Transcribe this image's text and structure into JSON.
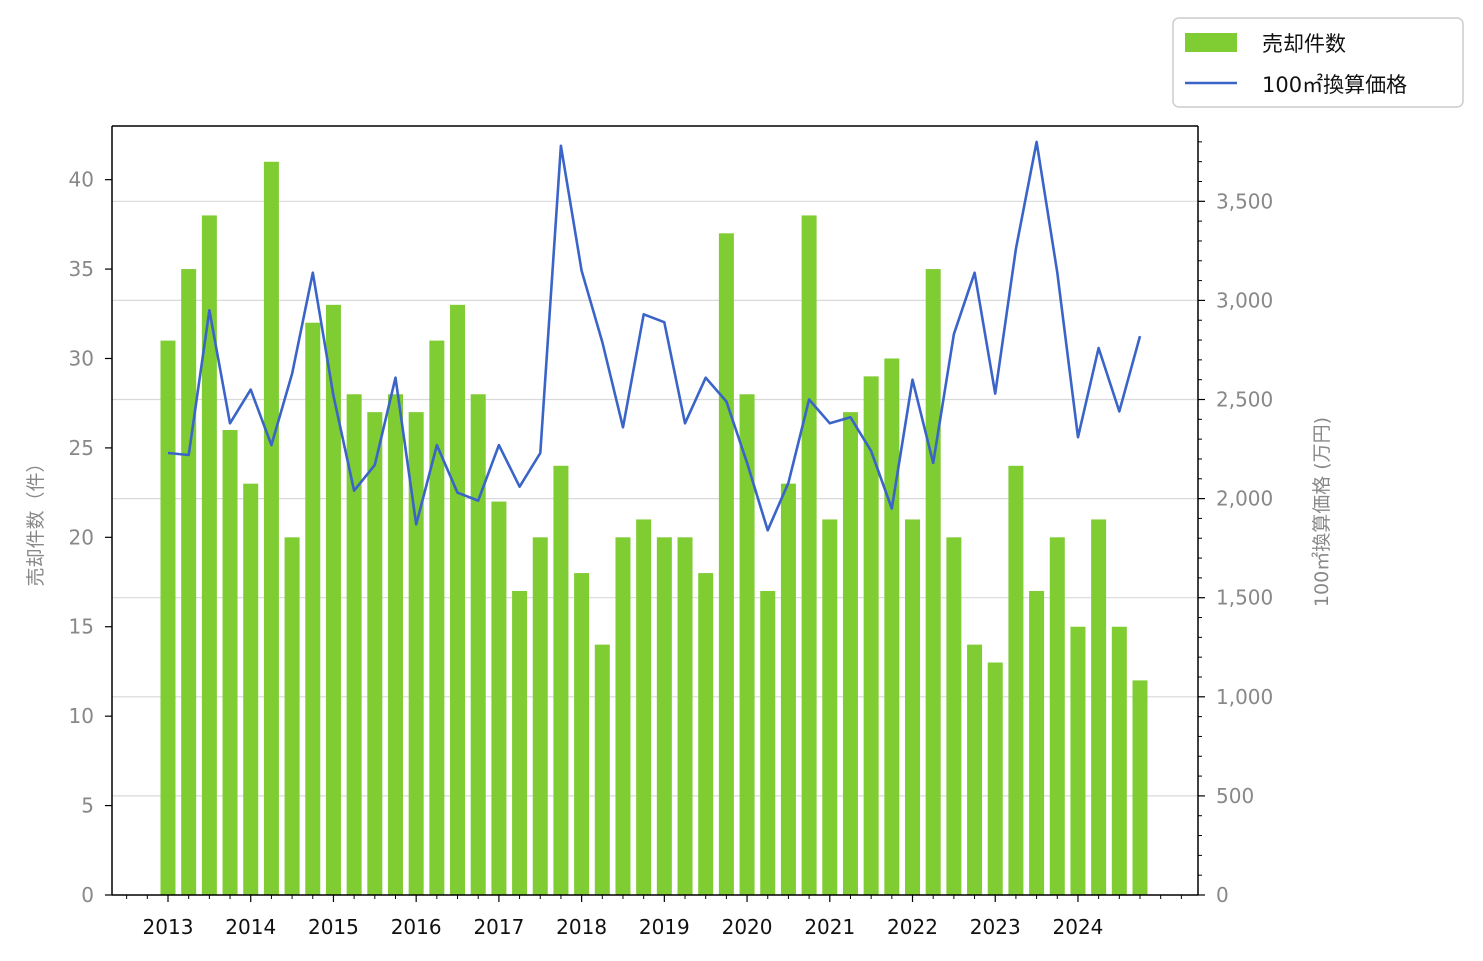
{
  "chart_data": {
    "type": "bar+line",
    "title": "",
    "x_tick_labels": [
      "2013",
      "2014",
      "2015",
      "2016",
      "2017",
      "2018",
      "2019",
      "2020",
      "2021",
      "2022",
      "2023",
      "2024"
    ],
    "periods": [
      "2013Q1",
      "2013Q2",
      "2013Q3",
      "2013Q4",
      "2014Q1",
      "2014Q2",
      "2014Q3",
      "2014Q4",
      "2015Q1",
      "2015Q2",
      "2015Q3",
      "2015Q4",
      "2016Q1",
      "2016Q2",
      "2016Q3",
      "2016Q4",
      "2017Q1",
      "2017Q2",
      "2017Q3",
      "2017Q4",
      "2018Q1",
      "2018Q2",
      "2018Q3",
      "2018Q4",
      "2019Q1",
      "2019Q2",
      "2019Q3",
      "2019Q4",
      "2020Q1",
      "2020Q2",
      "2020Q3",
      "2020Q4",
      "2021Q1",
      "2021Q2",
      "2021Q3",
      "2021Q4",
      "2022Q1",
      "2022Q2",
      "2022Q3",
      "2022Q4",
      "2023Q1",
      "2023Q2",
      "2023Q3",
      "2023Q4",
      "2024Q1",
      "2024Q2",
      "2024Q3",
      "2024Q4"
    ],
    "bar_series": {
      "name": "売却件数",
      "color": "#7fcc33",
      "axis": "left",
      "values": [
        31,
        35,
        38,
        26,
        23,
        41,
        20,
        32,
        33,
        28,
        27,
        28,
        27,
        31,
        33,
        28,
        22,
        17,
        20,
        24,
        18,
        14,
        20,
        21,
        20,
        20,
        18,
        37,
        28,
        17,
        23,
        38,
        21,
        27,
        29,
        30,
        21,
        35,
        20,
        14,
        13,
        24,
        17,
        20,
        15,
        21,
        15,
        12
      ]
    },
    "line_series": {
      "name": "100㎡換算価格",
      "color": "#3a64c8",
      "axis": "right",
      "values": [
        2230,
        2220,
        2950,
        2380,
        2550,
        2270,
        2630,
        3140,
        2520,
        2040,
        2170,
        2610,
        1870,
        2270,
        2030,
        1990,
        2270,
        2060,
        2230,
        3780,
        3150,
        2790,
        2360,
        2930,
        2890,
        2380,
        2610,
        2490,
        2180,
        1840,
        2080,
        2500,
        2380,
        2410,
        2240,
        1950,
        2600,
        2180,
        2830,
        3140,
        2530,
        3260,
        3800,
        3140,
        2310,
        2760,
        2440,
        2820
      ]
    },
    "left_axis": {
      "label": "売却件数（件）",
      "ylim": [
        0,
        43
      ],
      "ticks": [
        0,
        5,
        10,
        15,
        20,
        25,
        30,
        35,
        40
      ]
    },
    "right_axis": {
      "label": "100㎡換算価格 (万円)",
      "ylim": [
        0,
        3880
      ],
      "ticks": [
        0,
        500,
        1000,
        1500,
        2000,
        2500,
        3000,
        3500
      ],
      "tick_labels": [
        "0",
        "500",
        "1,000",
        "1,500",
        "2,000",
        "2,500",
        "3,000",
        "3,500"
      ]
    },
    "grid": "horizontal on right-axis ticks",
    "legend": "top-right, outside plot",
    "colors": {
      "tick_label": "#888888",
      "grid": "#d9d9d9",
      "axis": "#000000"
    }
  }
}
